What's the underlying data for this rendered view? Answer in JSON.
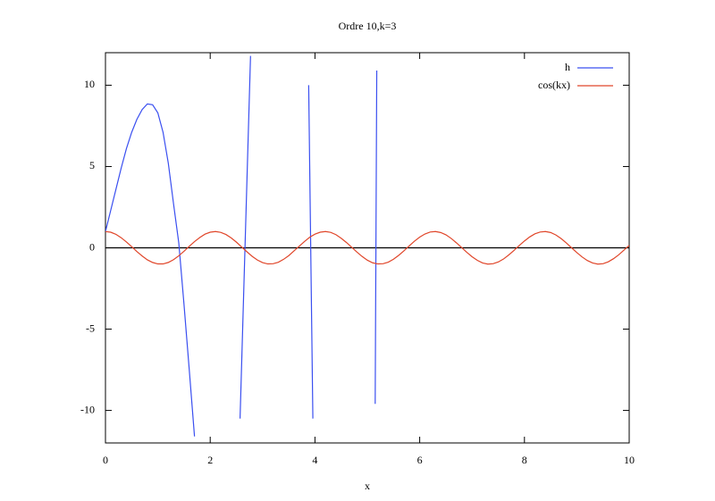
{
  "chart_data": {
    "type": "line",
    "title": "Ordre 10,k=3",
    "x_label": "x",
    "xlim": [
      0,
      10
    ],
    "ylim": [
      -12,
      12
    ],
    "xticks": [
      0,
      2,
      4,
      6,
      8,
      10
    ],
    "yticks": [
      -10,
      -5,
      0,
      5,
      10
    ],
    "zeroaxis": true,
    "legend": "top-right",
    "series": [
      {
        "name": "h",
        "color": "#3a4ff0",
        "x": [
          0,
          0.1,
          0.2,
          0.3,
          0.4,
          0.5,
          0.6,
          0.7,
          0.8,
          0.9,
          1.0,
          1.1,
          1.2,
          1.3,
          1.4,
          1.5,
          1.6,
          1.7,
          null,
          2.57,
          2.77,
          null,
          3.88,
          3.96,
          null,
          5.15,
          5.18
        ],
        "values": [
          1,
          2.3,
          3.6,
          4.9,
          6.1,
          7.1,
          7.9,
          8.5,
          8.85,
          8.8,
          8.3,
          7.1,
          5.2,
          2.7,
          0.3,
          -3.5,
          -7.5,
          -11.6,
          null,
          -10.5,
          11.8,
          null,
          10,
          -10.5,
          null,
          -9.6,
          10.9
        ]
      },
      {
        "name": "cos(kx)",
        "color": "#e0462a",
        "x": [
          0,
          0.1,
          0.2,
          0.3,
          0.4,
          0.5,
          0.6,
          0.7,
          0.8,
          0.9,
          1.0,
          1.1,
          1.2,
          1.3,
          1.4,
          1.5,
          1.6,
          1.7,
          1.8,
          1.9,
          2.0,
          2.1,
          2.2,
          2.3,
          2.4,
          2.5,
          2.6,
          2.7,
          2.8,
          2.9,
          3.0,
          3.1,
          3.2,
          3.3,
          3.4,
          3.5,
          3.6,
          3.7,
          3.8,
          3.9,
          4.0,
          4.1,
          4.2,
          4.3,
          4.4,
          4.5,
          4.6,
          4.7,
          4.8,
          4.9,
          5.0,
          5.1,
          5.2,
          5.3,
          5.4,
          5.5,
          5.6,
          5.7,
          5.8,
          5.9,
          6.0,
          6.1,
          6.2,
          6.3,
          6.4,
          6.5,
          6.6,
          6.7,
          6.8,
          6.9,
          7.0,
          7.1,
          7.2,
          7.3,
          7.4,
          7.5,
          7.6,
          7.7,
          7.8,
          7.9,
          8.0,
          8.1,
          8.2,
          8.3,
          8.4,
          8.5,
          8.6,
          8.7,
          8.8,
          8.9,
          9.0,
          9.1,
          9.2,
          9.3,
          9.4,
          9.5,
          9.6,
          9.7,
          9.8,
          9.9,
          10.0
        ],
        "values": [
          1,
          0.96,
          0.83,
          0.62,
          0.36,
          0.07,
          -0.23,
          -0.5,
          -0.74,
          -0.9,
          -0.99,
          -0.99,
          -0.9,
          -0.73,
          -0.49,
          -0.21,
          0.09,
          0.38,
          0.63,
          0.84,
          0.96,
          1,
          0.95,
          0.82,
          0.61,
          0.35,
          0.05,
          -0.24,
          -0.52,
          -0.75,
          -0.91,
          -0.99,
          -0.98,
          -0.89,
          -0.71,
          -0.48,
          -0.19,
          0.1,
          0.39,
          0.65,
          0.84,
          0.96,
          1,
          0.95,
          0.81,
          0.59,
          0.33,
          0.04,
          -0.26,
          -0.53,
          -0.76,
          -0.92,
          -0.99,
          -0.98,
          -0.88,
          -0.7,
          -0.46,
          -0.18,
          0.12,
          0.41,
          0.66,
          0.85,
          0.97,
          1,
          0.94,
          0.8,
          0.58,
          0.31,
          0.02,
          -0.28,
          -0.55,
          -0.77,
          -0.93,
          -1,
          -0.98,
          -0.87,
          -0.69,
          -0.44,
          -0.16,
          0.14,
          0.42,
          0.67,
          0.86,
          0.97,
          1,
          0.94,
          0.79,
          0.57,
          0.3,
          0,
          -0.29,
          -0.56,
          -0.78,
          -0.93,
          -1,
          -0.98,
          -0.86,
          -0.67,
          -0.43,
          -0.14,
          0.15
        ]
      }
    ]
  }
}
